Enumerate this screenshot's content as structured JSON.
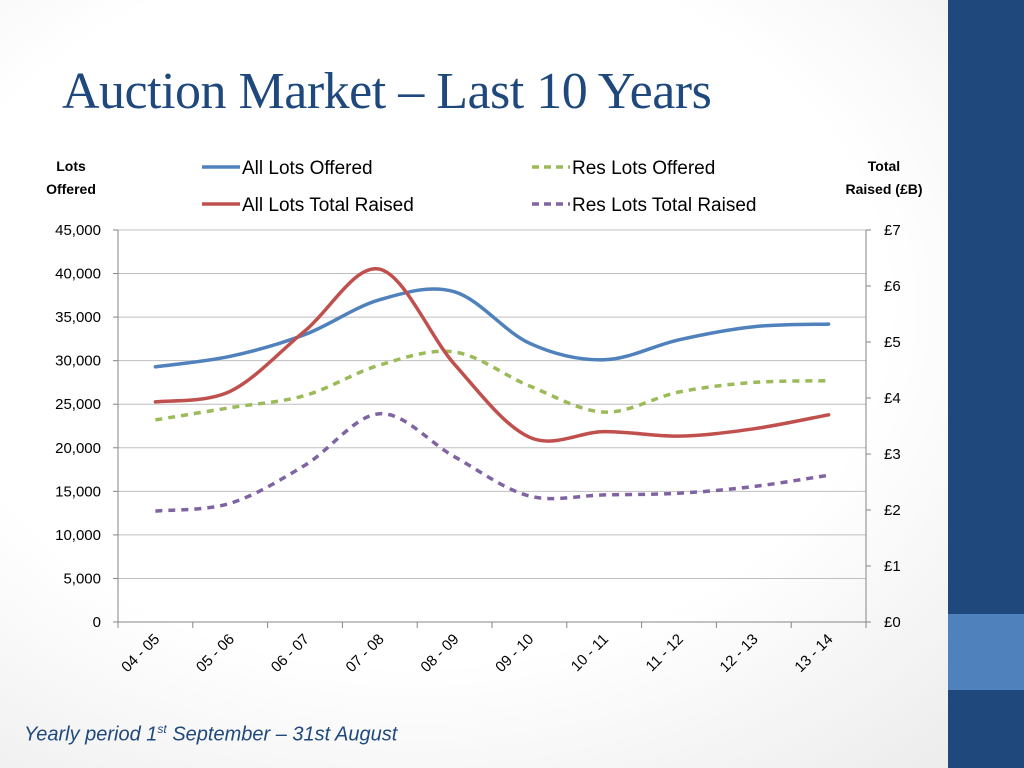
{
  "slide": {
    "title": "Auction Market – Last 10 Years",
    "footnote_pre": "Yearly period 1",
    "footnote_sup": "st",
    "footnote_post": " September – 31st August",
    "colors": {
      "sidebar": "#1f497d",
      "sidebar_accent": "#4f81bd",
      "title": "#1f497d"
    }
  },
  "chart_data": {
    "type": "line",
    "categories": [
      "04 - 05",
      "05 - 06",
      "06 - 07",
      "07 - 08",
      "08 - 09",
      "09 - 10",
      "10 - 11",
      "11 - 12",
      "12 - 13",
      "13 - 14"
    ],
    "left_axis": {
      "label_line1": "Lots",
      "label_line2": "Offered",
      "ylim": [
        0,
        45000
      ],
      "ticks": [
        "0",
        "5,000",
        "10,000",
        "15,000",
        "20,000",
        "25,000",
        "30,000",
        "35,000",
        "40,000",
        "45,000"
      ]
    },
    "right_axis": {
      "label_line1": "Total",
      "label_line2": "Raised (£B)",
      "ylim": [
        0,
        7
      ],
      "ticks": [
        "£0",
        "£1",
        "£2",
        "£3",
        "£4",
        "£5",
        "£6",
        "£7"
      ]
    },
    "grid": true,
    "legend_position": "top",
    "series": [
      {
        "name": "All Lots Offered",
        "axis": "left",
        "color": "#4f81bd",
        "dashed": false,
        "values": [
          29300,
          30500,
          33000,
          37000,
          37900,
          32000,
          30100,
          32400,
          33900,
          34200
        ]
      },
      {
        "name": "Res Lots Offered",
        "axis": "left",
        "color": "#9bbb59",
        "dashed": true,
        "values": [
          23200,
          24600,
          26000,
          29500,
          31000,
          27100,
          24100,
          26400,
          27500,
          27700
        ]
      },
      {
        "name": "All Lots Total Raised",
        "axis": "right",
        "color": "#c0504d",
        "dashed": false,
        "values": [
          3.93,
          4.12,
          5.2,
          6.3,
          4.6,
          3.3,
          3.4,
          3.32,
          3.45,
          3.7
        ]
      },
      {
        "name": "Res Lots Total Raised",
        "axis": "right",
        "color": "#8064a2",
        "dashed": true,
        "values": [
          1.98,
          2.12,
          2.8,
          3.72,
          2.95,
          2.25,
          2.27,
          2.3,
          2.42,
          2.62
        ]
      }
    ]
  }
}
